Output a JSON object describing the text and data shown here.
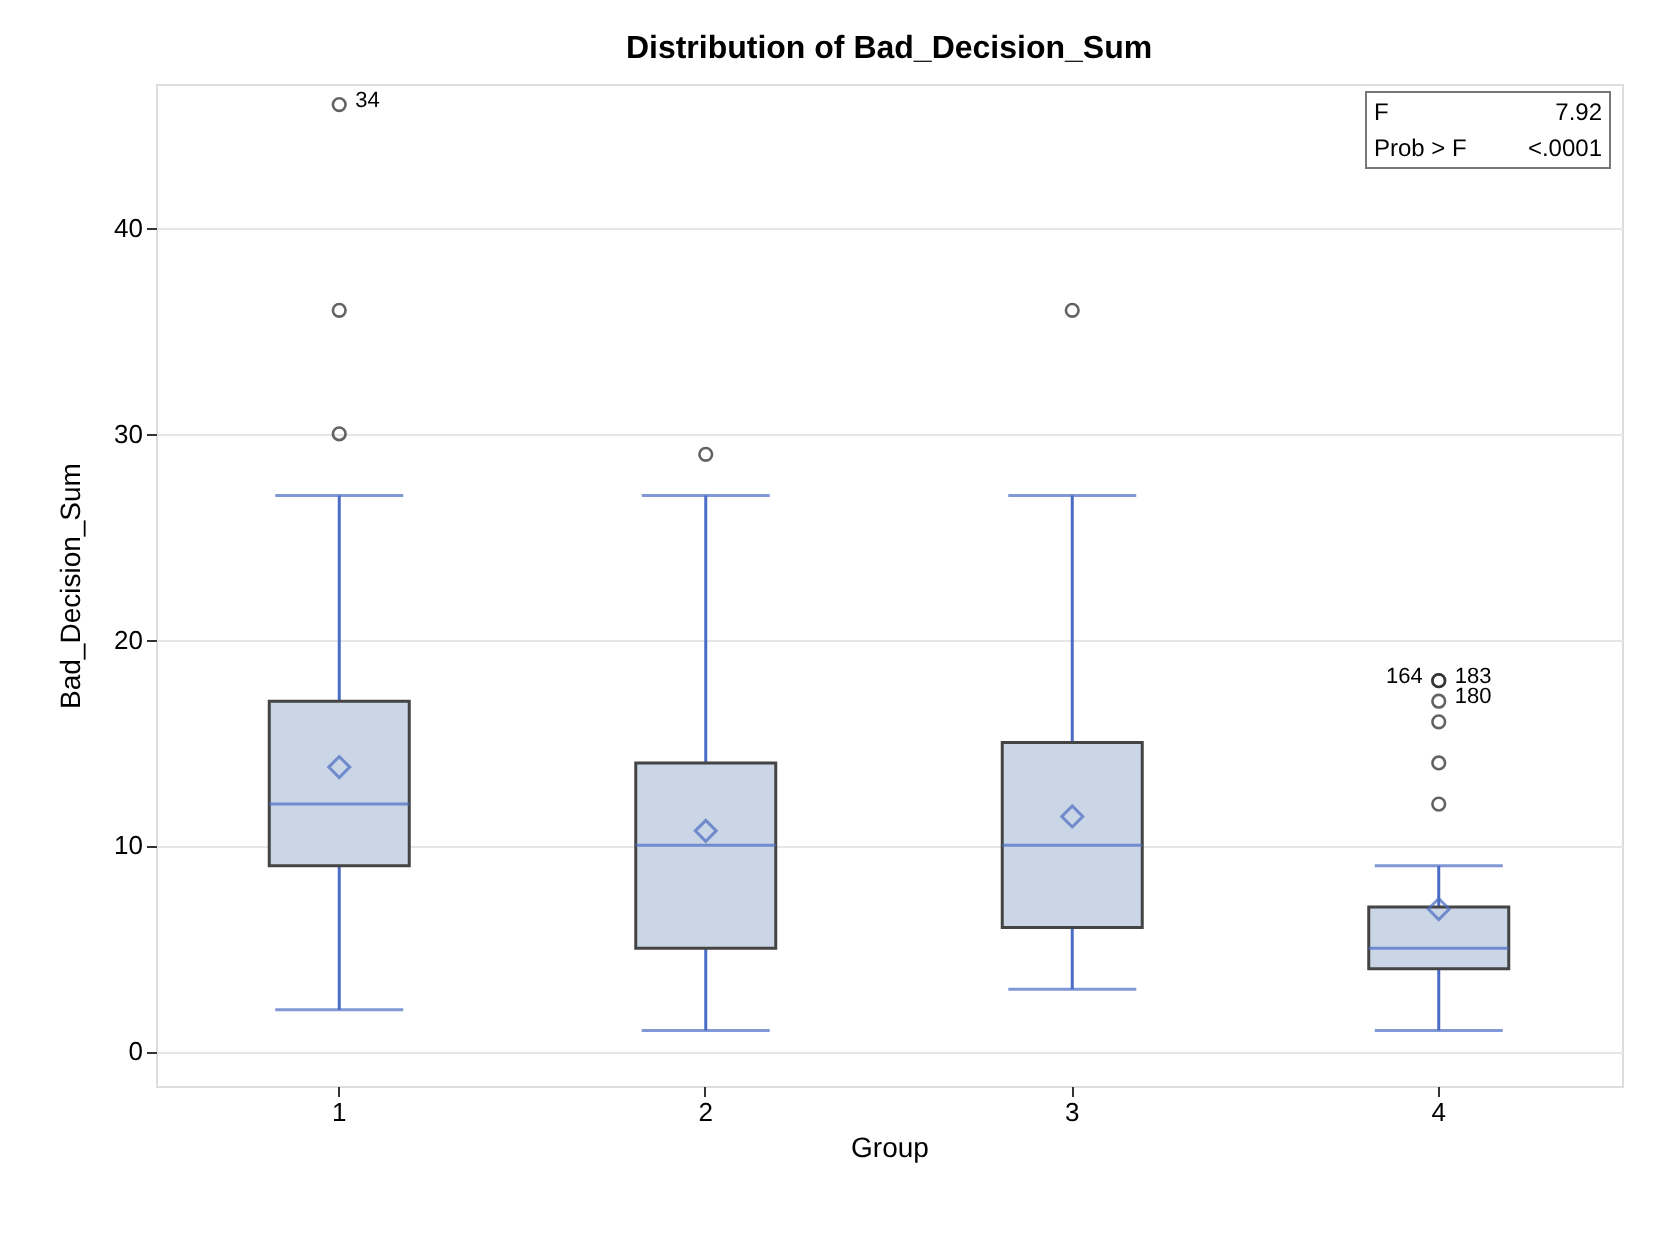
{
  "chart_data": {
    "type": "box",
    "title": "Distribution of Bad_Decision_Sum",
    "xlabel": "Group",
    "ylabel": "Bad_Decision_Sum",
    "categories": [
      "1",
      "2",
      "3",
      "4"
    ],
    "series": [
      {
        "color": "#cad5e5",
        "boxes": [
          {
            "low": 2,
            "q1": 9,
            "median": 12,
            "q3": 17,
            "high": 27,
            "mean": 13.8
          },
          {
            "low": 1,
            "q1": 5,
            "median": 10,
            "q3": 14,
            "high": 27,
            "mean": 10.7
          },
          {
            "low": 3,
            "q1": 6,
            "median": 10,
            "q3": 15,
            "high": 27,
            "mean": 11.4
          },
          {
            "low": 1,
            "q1": 4,
            "median": 5,
            "q3": 7,
            "high": 9,
            "mean": 6.9
          }
        ]
      },
      {
        "type": "scatter",
        "color": "#222222",
        "x": [
          "1",
          "1",
          "1",
          "2",
          "3",
          "4",
          "4",
          "4",
          "4",
          "4",
          "4"
        ],
        "values": [
          30,
          36,
          46,
          29,
          36,
          12,
          14,
          16,
          17,
          18,
          18
        ]
      }
    ],
    "ylim": [
      -1.7,
      47
    ],
    "yticks": [
      0,
      10,
      20,
      30,
      40
    ],
    "grid": "y",
    "marker": "circle",
    "annotations": [
      {
        "text": "34",
        "x": "1",
        "y": 46
      },
      {
        "text": "164",
        "x": "4",
        "y": 18
      },
      {
        "text": "183",
        "x": "4",
        "y": 18
      },
      {
        "text": "180",
        "x": "4",
        "y": 17
      },
      "F",
      "7.92",
      "Prob > F",
      "<.0001"
    ]
  }
}
